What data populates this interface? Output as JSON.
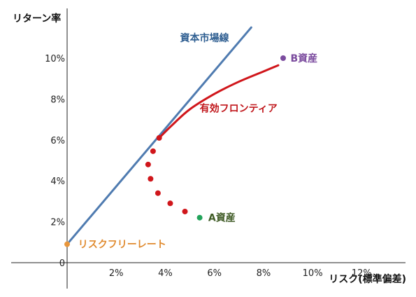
{
  "chart_data": {
    "type": "scatter",
    "title": "",
    "xlabel": "リスク(標準偏差)",
    "ylabel": "リターン率",
    "xlim": [
      0,
      13.5
    ],
    "ylim": [
      -1.2,
      12.5
    ],
    "x_ticks": [
      {
        "value": 2,
        "label": "2%"
      },
      {
        "value": 4,
        "label": "4%"
      },
      {
        "value": 6,
        "label": "6%"
      },
      {
        "value": 8,
        "label": "8%"
      },
      {
        "value": 10,
        "label": "10%"
      },
      {
        "value": 12,
        "label": "12%"
      }
    ],
    "y_ticks": [
      {
        "value": 0,
        "label": "0"
      },
      {
        "value": 2,
        "label": "2%"
      },
      {
        "value": 4,
        "label": "4%"
      },
      {
        "value": 6,
        "label": "6%"
      },
      {
        "value": 8,
        "label": "8%"
      },
      {
        "value": 10,
        "label": "10%"
      }
    ],
    "grid": false,
    "series": [
      {
        "name": "資本市場線",
        "kind": "line",
        "color": "#4F7BB0",
        "points": [
          [
            0,
            0.9
          ],
          [
            7.5,
            11.5
          ]
        ]
      },
      {
        "name": "有効フロンティア",
        "kind": "curve",
        "color": "#D0161B",
        "points": [
          [
            3.75,
            6.1
          ],
          [
            4.3,
            6.75
          ],
          [
            5.0,
            7.5
          ],
          [
            6.0,
            8.25
          ],
          [
            7.0,
            8.85
          ],
          [
            8.0,
            9.35
          ],
          [
            8.6,
            9.65
          ]
        ]
      },
      {
        "name": "",
        "kind": "dots",
        "color": "#D0161B",
        "points": [
          [
            3.75,
            6.1
          ],
          [
            3.5,
            5.45
          ],
          [
            3.3,
            4.8
          ],
          [
            3.4,
            4.1
          ],
          [
            3.7,
            3.4
          ],
          [
            4.2,
            2.9
          ],
          [
            4.8,
            2.5
          ]
        ]
      },
      {
        "name": "B資産",
        "kind": "point",
        "color": "#7B4B9E",
        "points": [
          [
            8.8,
            10.0
          ]
        ]
      },
      {
        "name": "A資産",
        "kind": "point",
        "color": "#22A35A",
        "points": [
          [
            5.4,
            2.2
          ]
        ]
      },
      {
        "name": "リスクフリーレート",
        "kind": "point",
        "color": "#E8963B",
        "points": [
          [
            0,
            0.9
          ]
        ]
      }
    ],
    "annotations": [
      {
        "text": "資本市場線",
        "color": "#2E5E91",
        "at": [
          4.6,
          11.0
        ],
        "anchor": "start"
      },
      {
        "text": "B資産",
        "color": "#7B4B9E",
        "at": [
          9.1,
          10.0
        ],
        "anchor": "start"
      },
      {
        "text": "有効フロンティア",
        "color": "#C0161B",
        "at": [
          5.4,
          7.55
        ],
        "anchor": "start"
      },
      {
        "text": "A資産",
        "color": "#3E5A24",
        "at": [
          5.75,
          2.2
        ],
        "anchor": "start"
      },
      {
        "text": "リスクフリーレート",
        "color": "#E08A2E",
        "at": [
          0.45,
          0.9
        ],
        "anchor": "start"
      }
    ]
  }
}
